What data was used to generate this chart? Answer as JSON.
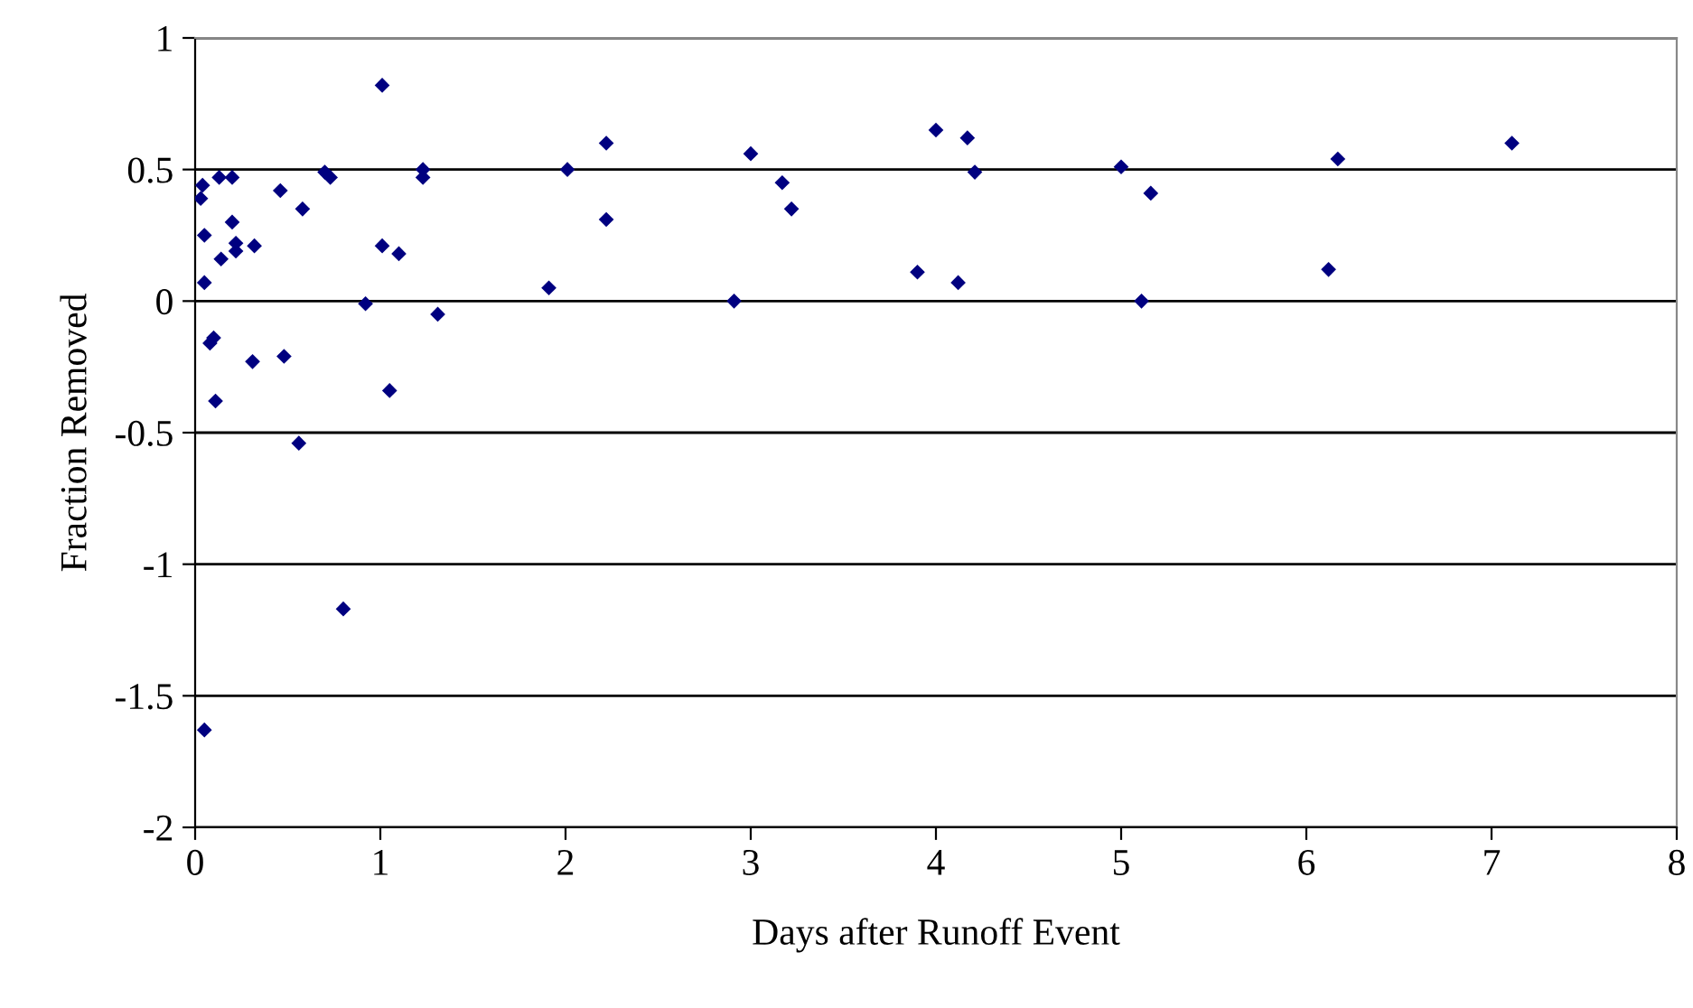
{
  "chart_data": {
    "type": "scatter",
    "xlabel": "Days after Runoff Event",
    "ylabel": "Fraction Removed",
    "xlim": [
      0,
      8
    ],
    "xticks": [
      0,
      1,
      2,
      3,
      4,
      5,
      6,
      7,
      8
    ],
    "ylim": [
      -2,
      1
    ],
    "yticks": [
      -2,
      -1.5,
      -1,
      -0.5,
      0,
      0.5,
      1
    ],
    "grid": "y",
    "marker": "diamond",
    "series": [
      {
        "color": "#000080",
        "x": [
          0.05,
          0.04,
          0.03,
          0.05,
          0.05,
          0.08,
          0.1,
          0.11,
          0.13,
          0.14,
          0.2,
          0.2,
          0.22,
          0.22,
          0.32,
          0.31,
          0.46,
          0.48,
          0.58,
          0.56,
          0.7,
          0.73,
          0.8,
          0.92,
          1.01,
          1.01,
          1.05,
          1.1,
          1.23,
          1.23,
          1.31,
          1.91,
          2.01,
          2.22,
          2.22,
          2.91,
          3.0,
          3.17,
          3.22,
          3.9,
          4.0,
          4.12,
          4.17,
          4.21,
          5.0,
          5.11,
          5.16,
          6.12,
          6.17,
          7.11
        ],
        "values": [
          -1.63,
          0.44,
          0.39,
          0.25,
          0.07,
          -0.16,
          -0.14,
          -0.38,
          0.47,
          0.16,
          0.47,
          0.3,
          0.22,
          0.19,
          0.21,
          -0.23,
          0.42,
          -0.21,
          0.35,
          -0.54,
          0.49,
          0.47,
          -1.17,
          -0.01,
          0.82,
          0.21,
          -0.34,
          0.18,
          0.5,
          0.47,
          -0.05,
          0.05,
          0.5,
          0.6,
          0.31,
          0.0,
          0.56,
          0.45,
          0.35,
          0.11,
          0.65,
          0.07,
          0.62,
          0.49,
          0.51,
          0.0,
          0.41,
          0.12,
          0.54,
          0.6
        ]
      }
    ]
  }
}
